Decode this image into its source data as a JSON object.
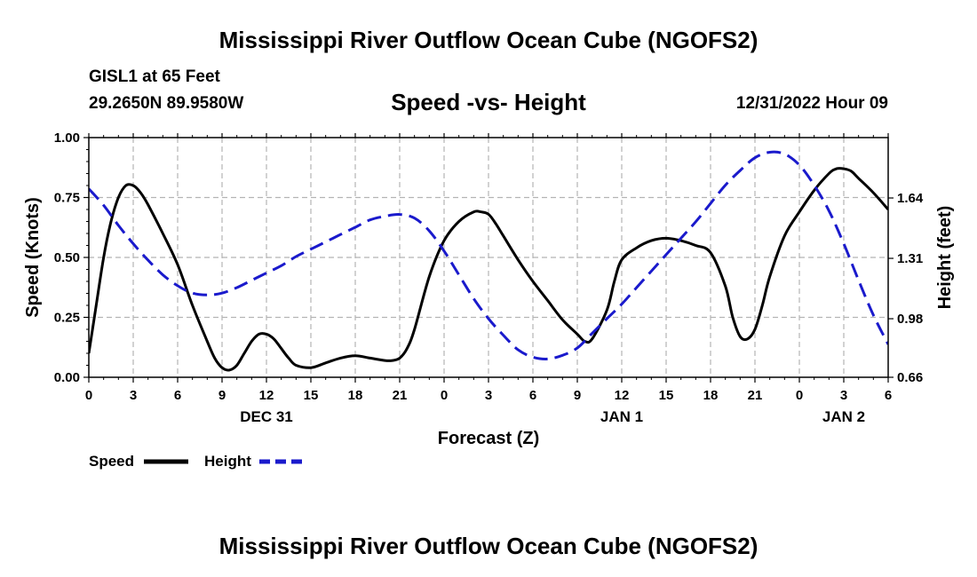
{
  "header": {
    "title": "Mississippi River Outflow Ocean Cube (NGOFS2)",
    "station": "GISL1 at 65 Feet",
    "coords": "29.2650N  89.9580W",
    "datetime": "12/31/2022 Hour 09",
    "footer_title": "Mississippi River Outflow Ocean Cube (NGOFS2)"
  },
  "legend": {
    "speed_label": "Speed",
    "height_label": "Height"
  },
  "colors": {
    "speed": "#000000",
    "height": "#1a1acc",
    "grid": "#b4b4b4"
  },
  "chart_data": {
    "type": "line",
    "title": "Speed -vs- Height",
    "xlabel": "Forecast (Z)",
    "ylabel": "Speed (Knots)",
    "y2label": "Height (feet)",
    "xlim": [
      0,
      54
    ],
    "ylim": [
      0,
      1.0
    ],
    "y2lim": [
      0.66,
      1.97
    ],
    "x_ticks": [
      0,
      3,
      6,
      9,
      12,
      15,
      18,
      21,
      24,
      27,
      30,
      33,
      36,
      39,
      42,
      45,
      48,
      51,
      54
    ],
    "x_tick_labels": [
      "0",
      "3",
      "6",
      "9",
      "12",
      "15",
      "18",
      "21",
      "0",
      "3",
      "6",
      "9",
      "12",
      "15",
      "18",
      "21",
      "0",
      "3",
      "6"
    ],
    "date_labels": [
      {
        "x": 12,
        "label": "DEC 31"
      },
      {
        "x": 36,
        "label": "JAN 1"
      },
      {
        "x": 51,
        "label": "JAN 2"
      }
    ],
    "y_ticks": [
      0,
      0.25,
      0.5,
      0.75,
      1.0
    ],
    "y_tick_labels": [
      "0.00",
      "0.25",
      "0.50",
      "0.75",
      "1.00"
    ],
    "y2_ticks": [
      0.66,
      0.98,
      1.31,
      1.64
    ],
    "y2_tick_labels": [
      "0.66",
      "0.98",
      "1.31",
      "1.64"
    ],
    "series": [
      {
        "name": "Speed",
        "axis": "left",
        "style": "solid",
        "x": [
          0,
          0.5,
          1,
          1.5,
          2,
          2.5,
          3,
          3.5,
          4,
          5,
          6,
          7,
          8,
          8.5,
          9,
          9.5,
          10,
          10.5,
          11,
          11.5,
          12,
          12.5,
          13,
          13.5,
          14,
          15,
          16,
          17,
          18,
          19,
          20,
          20.5,
          21,
          21.5,
          22,
          23,
          24,
          25,
          26,
          26.5,
          27,
          27.5,
          28,
          29,
          30,
          31,
          32,
          33,
          33.5,
          34,
          35,
          35.5,
          36,
          37,
          38,
          39,
          40,
          41,
          42,
          43,
          43.5,
          44,
          44.5,
          45,
          45.5,
          46,
          47,
          48,
          49,
          50,
          50.5,
          51,
          51.5,
          52,
          53,
          54
        ],
        "values": [
          0.1,
          0.3,
          0.5,
          0.65,
          0.75,
          0.8,
          0.8,
          0.77,
          0.72,
          0.6,
          0.47,
          0.3,
          0.15,
          0.08,
          0.04,
          0.03,
          0.05,
          0.1,
          0.15,
          0.18,
          0.18,
          0.16,
          0.12,
          0.08,
          0.05,
          0.04,
          0.06,
          0.08,
          0.09,
          0.08,
          0.07,
          0.07,
          0.08,
          0.12,
          0.2,
          0.42,
          0.57,
          0.65,
          0.69,
          0.69,
          0.68,
          0.64,
          0.59,
          0.49,
          0.4,
          0.32,
          0.24,
          0.18,
          0.15,
          0.16,
          0.28,
          0.4,
          0.49,
          0.54,
          0.57,
          0.58,
          0.57,
          0.55,
          0.52,
          0.38,
          0.25,
          0.17,
          0.16,
          0.2,
          0.3,
          0.42,
          0.59,
          0.69,
          0.78,
          0.85,
          0.87,
          0.87,
          0.86,
          0.83,
          0.77,
          0.7
        ]
      },
      {
        "name": "Height",
        "axis": "right",
        "style": "dashed",
        "x": [
          0,
          1,
          2,
          3,
          4,
          5,
          6,
          7,
          8,
          9,
          10,
          11,
          12,
          13,
          14,
          15,
          16,
          17,
          18,
          19,
          20,
          21,
          22,
          23,
          24,
          25,
          26,
          27,
          28,
          29,
          30,
          31,
          32,
          33,
          34,
          35,
          36,
          37,
          38,
          39,
          40,
          41,
          42,
          43,
          44,
          45,
          46,
          47,
          48,
          49,
          50,
          51,
          52,
          53,
          54
        ],
        "values": [
          1.69,
          1.6,
          1.49,
          1.39,
          1.3,
          1.22,
          1.16,
          1.12,
          1.11,
          1.12,
          1.15,
          1.19,
          1.23,
          1.27,
          1.32,
          1.36,
          1.4,
          1.44,
          1.48,
          1.52,
          1.54,
          1.55,
          1.53,
          1.46,
          1.35,
          1.22,
          1.09,
          0.98,
          0.89,
          0.81,
          0.77,
          0.76,
          0.78,
          0.82,
          0.9,
          0.98,
          1.06,
          1.15,
          1.24,
          1.33,
          1.42,
          1.51,
          1.61,
          1.71,
          1.79,
          1.86,
          1.89,
          1.88,
          1.82,
          1.71,
          1.57,
          1.39,
          1.19,
          1.0,
          0.84
        ]
      }
    ]
  }
}
